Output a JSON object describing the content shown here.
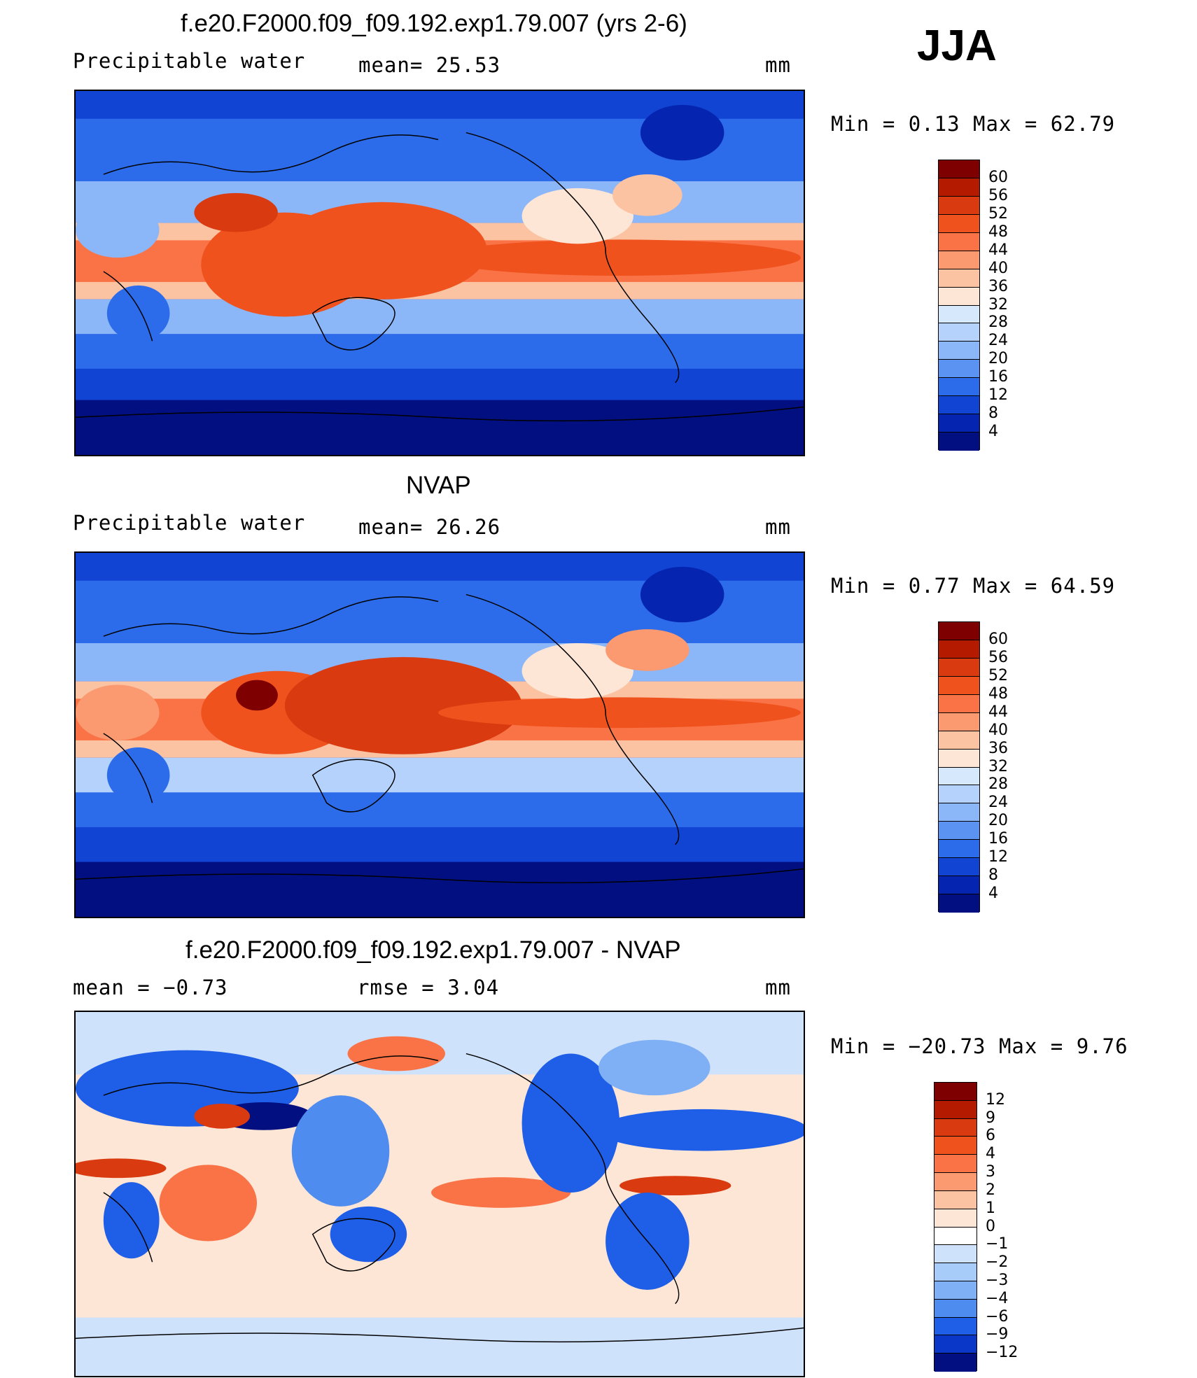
{
  "season": "JJA",
  "panels": [
    {
      "title": "f.e20.F2000.f09_f09.192.exp1.79.007 (yrs 2-6)",
      "variable": "Precipitable water",
      "stat1": "mean=   25.53",
      "stat2": "",
      "units": "mm",
      "minmax": "Min  =    0.13  Max  =   62.79",
      "colorbar": {
        "labels": [
          "60",
          "56",
          "52",
          "48",
          "44",
          "40",
          "36",
          "32",
          "28",
          "24",
          "20",
          "16",
          "12",
          "8",
          "4"
        ],
        "colors": [
          "#7f0000",
          "#b31a00",
          "#d93a0f",
          "#f0521e",
          "#fa7346",
          "#fb9a70",
          "#fcc3a3",
          "#fde6d6",
          "#d6e8fb",
          "#b4d2fb",
          "#8bb6f8",
          "#5b93f2",
          "#2c6ceb",
          "#1244d4",
          "#0525b0",
          "#020f80"
        ]
      }
    },
    {
      "title": "NVAP",
      "variable": "Precipitable water",
      "stat1": "mean=   26.26",
      "stat2": "",
      "units": "mm",
      "minmax": "Min  =    0.77  Max  =   64.59",
      "colorbar": {
        "labels": [
          "60",
          "56",
          "52",
          "48",
          "44",
          "40",
          "36",
          "32",
          "28",
          "24",
          "20",
          "16",
          "12",
          "8",
          "4"
        ],
        "colors": [
          "#7f0000",
          "#b31a00",
          "#d93a0f",
          "#f0521e",
          "#fa7346",
          "#fb9a70",
          "#fcc3a3",
          "#fde6d6",
          "#d6e8fb",
          "#b4d2fb",
          "#8bb6f8",
          "#5b93f2",
          "#2c6ceb",
          "#1244d4",
          "#0525b0",
          "#020f80"
        ]
      }
    },
    {
      "title": "f.e20.F2000.f09_f09.192.exp1.79.007 - NVAP",
      "variable": "mean  =   −0.73",
      "stat1": "rmse  =    3.04",
      "stat2": "",
      "units": "mm",
      "minmax": "Min  = −20.73  Max  =    9.76",
      "colorbar": {
        "labels": [
          "12",
          "9",
          "6",
          "4",
          "3",
          "2",
          "1",
          "0",
          "−1",
          "−2",
          "−3",
          "−4",
          "−6",
          "−9",
          "−12"
        ],
        "colors": [
          "#7f0000",
          "#b31a00",
          "#d93a0f",
          "#f0521e",
          "#fa7346",
          "#fb9a70",
          "#fcc3a3",
          "#fde6d6",
          "#ffffff",
          "#cfe2fb",
          "#a8ccf9",
          "#7fb0f5",
          "#4e8cef",
          "#1f5ee6",
          "#0a37c8",
          "#020f80"
        ]
      }
    }
  ]
}
